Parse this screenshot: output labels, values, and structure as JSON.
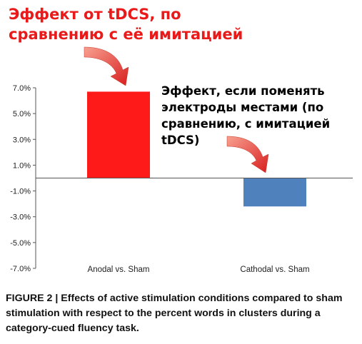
{
  "chart_data": {
    "type": "bar",
    "categories": [
      "Anodal vs. Sham",
      "Cathodal vs. Sham"
    ],
    "values": [
      6.7,
      -2.2
    ],
    "ylim": [
      -7.0,
      7.0
    ],
    "yticks": [
      "7.0%",
      "5.0%",
      "3.0%",
      "1.0%",
      "-1.0%",
      "-3.0%",
      "-5.0%",
      "-7.0%"
    ],
    "ytick_values": [
      7,
      5,
      3,
      1,
      -1,
      -3,
      -5,
      -7
    ],
    "unit": "%",
    "grid": false,
    "colors": {
      "anodal": "#ff1a1a",
      "cathodal": "#4f81bd",
      "arrow": "#e8342a"
    }
  },
  "annotations": {
    "anodal": "Эффект от tDCS, по сравнению с её имитацией",
    "cathodal": "Эффект, если поменять электроды местами (по сравнению, с имитацией tDCS)"
  },
  "caption": "FIGURE 2 | Effects of active stimulation conditions compared to sham stimulation with respect to the percent words in clusters during a category-cued fluency task."
}
